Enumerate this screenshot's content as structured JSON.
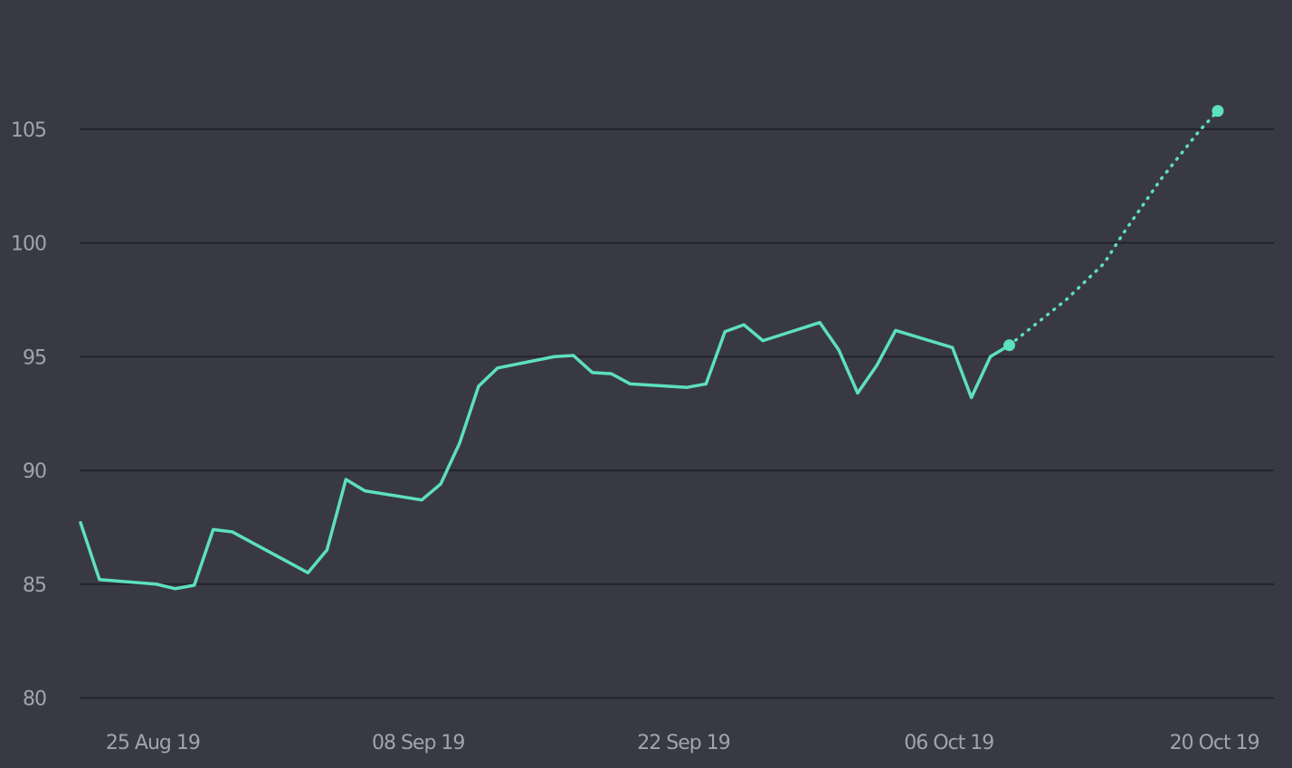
{
  "chart_data": {
    "type": "line",
    "title": "",
    "xlabel": "",
    "ylabel": "",
    "grid": true,
    "legend": "none",
    "ylim": [
      80,
      108
    ],
    "xlim": [
      "2019-08-23",
      "2019-10-24"
    ],
    "y_ticks": [
      80,
      85,
      90,
      95,
      100,
      105
    ],
    "y_tick_labels": [
      "80",
      "85",
      "90",
      "95",
      "100",
      "105"
    ],
    "x_ticks": [
      "2019-08-25",
      "2019-09-08",
      "2019-09-22",
      "2019-10-06",
      "2019-10-20"
    ],
    "x_tick_labels": [
      "25 Aug 19",
      "08 Sep 19",
      "22 Sep 19",
      "06 Oct 19",
      "20 Oct 19"
    ],
    "colors": {
      "series": "#5de0bf",
      "background": "#393945",
      "grid": "#23232b",
      "tick_text": "#a3a3ad"
    },
    "series": [
      {
        "style": "solid",
        "points": [
          {
            "x": "2019-08-23",
            "y": 87.7
          },
          {
            "x": "2019-08-24",
            "y": 85.2
          },
          {
            "x": "2019-08-27",
            "y": 85.0
          },
          {
            "x": "2019-08-28",
            "y": 84.8
          },
          {
            "x": "2019-08-29",
            "y": 84.95
          },
          {
            "x": "2019-08-30",
            "y": 87.4
          },
          {
            "x": "2019-08-31",
            "y": 87.3
          },
          {
            "x": "2019-09-04",
            "y": 85.5
          },
          {
            "x": "2019-09-05",
            "y": 86.5
          },
          {
            "x": "2019-09-06",
            "y": 89.6
          },
          {
            "x": "2019-09-07",
            "y": 89.1
          },
          {
            "x": "2019-09-10",
            "y": 88.7
          },
          {
            "x": "2019-09-11",
            "y": 89.4
          },
          {
            "x": "2019-09-12",
            "y": 91.2
          },
          {
            "x": "2019-09-13",
            "y": 93.7
          },
          {
            "x": "2019-09-14",
            "y": 94.5
          },
          {
            "x": "2019-09-17",
            "y": 95.0
          },
          {
            "x": "2019-09-18",
            "y": 95.05
          },
          {
            "x": "2019-09-19",
            "y": 94.3
          },
          {
            "x": "2019-09-20",
            "y": 94.25
          },
          {
            "x": "2019-09-21",
            "y": 93.8
          },
          {
            "x": "2019-09-24",
            "y": 93.65
          },
          {
            "x": "2019-09-25",
            "y": 93.8
          },
          {
            "x": "2019-09-26",
            "y": 96.1
          },
          {
            "x": "2019-09-27",
            "y": 96.4
          },
          {
            "x": "2019-09-28",
            "y": 95.7
          },
          {
            "x": "2019-10-01",
            "y": 96.5
          },
          {
            "x": "2019-10-02",
            "y": 95.3
          },
          {
            "x": "2019-10-03",
            "y": 93.4
          },
          {
            "x": "2019-10-04",
            "y": 94.6
          },
          {
            "x": "2019-10-05",
            "y": 96.15
          },
          {
            "x": "2019-10-08",
            "y": 95.4
          },
          {
            "x": "2019-10-09",
            "y": 93.2
          },
          {
            "x": "2019-10-10",
            "y": 95.0
          },
          {
            "x": "2019-10-11",
            "y": 95.5
          }
        ]
      },
      {
        "style": "dotted",
        "points": [
          {
            "x": "2019-10-11",
            "y": 95.5
          },
          {
            "x": "2019-10-14",
            "y": 97.5
          },
          {
            "x": "2019-10-16",
            "y": 99.1
          },
          {
            "x": "2019-10-17",
            "y": 100.4
          },
          {
            "x": "2019-10-19",
            "y": 102.8
          },
          {
            "x": "2019-10-21",
            "y": 104.9
          },
          {
            "x": "2019-10-22",
            "y": 105.8
          }
        ]
      }
    ],
    "markers": [
      {
        "x": "2019-10-11",
        "y": 95.5
      },
      {
        "x": "2019-10-22",
        "y": 105.8
      }
    ]
  }
}
